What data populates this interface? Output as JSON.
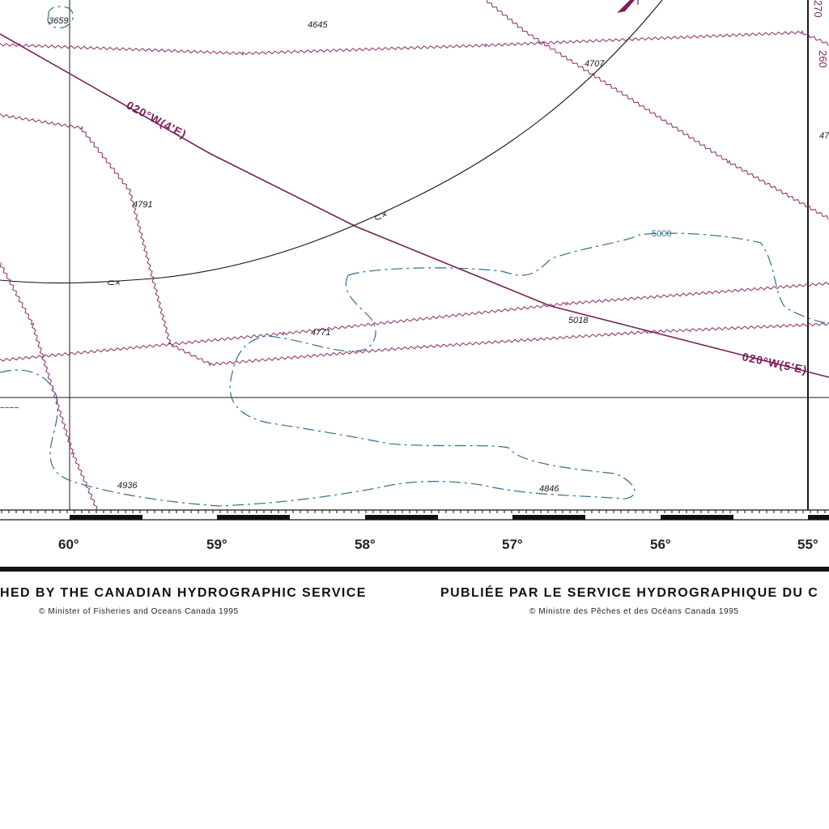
{
  "map": {
    "soundings": [
      {
        "id": "s1",
        "value": "3659"
      },
      {
        "id": "s2",
        "value": "4645"
      },
      {
        "id": "s3",
        "value": "4707"
      },
      {
        "id": "s4",
        "value": "4791"
      },
      {
        "id": "s5",
        "value": "4771"
      },
      {
        "id": "s6",
        "value": "5018"
      },
      {
        "id": "s7",
        "value": "4936"
      },
      {
        "id": "s8",
        "value": "4846"
      },
      {
        "id": "s9",
        "value": "47"
      }
    ],
    "contour_label": "5000",
    "isogonic_labels": [
      "020°W(4'E)",
      "020°W(5'E)"
    ],
    "edge_label_top": "270",
    "edge_label_mid": "260",
    "longitudes": [
      "60°",
      "59°",
      "58°",
      "57°",
      "56°",
      "55°"
    ]
  },
  "footer": {
    "english_publisher": "HED BY THE CANADIAN HYDROGRAPHIC SERVICE",
    "english_copyright": "© Minister of Fisheries and Oceans Canada 1995",
    "french_publisher": "PUBLIÉE PAR LE SERVICE HYDROGRAPHIQUE DU C",
    "french_copyright": "© Ministre des Pêches et des Océans Canada 1995"
  },
  "colors": {
    "isogonic": "#7a1f5a",
    "contour": "#2f6f8f",
    "grid": "#1a1a1a"
  }
}
